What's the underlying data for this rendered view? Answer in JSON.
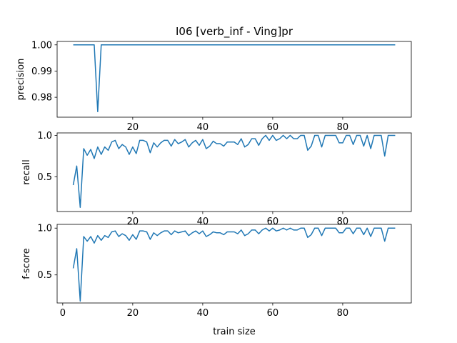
{
  "chart_data": [
    {
      "type": "line",
      "title": "I06 [verb_inf - Ving]pr",
      "xlabel": "",
      "ylabel": "precision",
      "xlim": [
        -1.6,
        99.6
      ],
      "ylim": [
        0.9724,
        1.0013
      ],
      "xticks": [
        20,
        40,
        60,
        80
      ],
      "yticks": [
        0.98,
        0.99,
        1.0
      ],
      "ytick_labels": [
        "0.98",
        "0.99",
        "1.00"
      ],
      "grid": false,
      "series": [
        {
          "color": "#1f77b4",
          "x": [
            3,
            9,
            10,
            11,
            95
          ],
          "y": [
            1.0,
            1.0,
            0.9745,
            1.0,
            1.0
          ]
        }
      ]
    },
    {
      "type": "line",
      "xlabel": "",
      "ylabel": "recall",
      "xlim": [
        -1.6,
        99.6
      ],
      "ylim": [
        0.08,
        1.03
      ],
      "xticks": [
        20,
        40,
        60,
        80
      ],
      "yticks": [
        0.5,
        1.0
      ],
      "ytick_labels": [
        "0.5",
        "1.0"
      ],
      "grid": false,
      "series": [
        {
          "color": "#1f77b4",
          "x": [
            3,
            4,
            5,
            6,
            7,
            8,
            9,
            10,
            11,
            12,
            13,
            14,
            15,
            16,
            17,
            18,
            19,
            20,
            21,
            22,
            23,
            24,
            25,
            26,
            27,
            28,
            29,
            30,
            31,
            32,
            33,
            34,
            35,
            36,
            37,
            38,
            39,
            40,
            41,
            42,
            43,
            44,
            45,
            46,
            47,
            48,
            49,
            50,
            51,
            52,
            53,
            54,
            55,
            56,
            57,
            58,
            59,
            60,
            61,
            62,
            63,
            64,
            65,
            66,
            67,
            68,
            69,
            70,
            71,
            72,
            73,
            74,
            75,
            76,
            77,
            78,
            79,
            80,
            81,
            82,
            83,
            84,
            85,
            86,
            87,
            88,
            89,
            90,
            91,
            92,
            93,
            94,
            95
          ],
          "y": [
            0.4,
            0.63,
            0.13,
            0.84,
            0.76,
            0.83,
            0.72,
            0.86,
            0.77,
            0.86,
            0.82,
            0.92,
            0.94,
            0.84,
            0.89,
            0.86,
            0.77,
            0.86,
            0.78,
            0.94,
            0.94,
            0.92,
            0.79,
            0.91,
            0.86,
            0.91,
            0.94,
            0.94,
            0.87,
            0.95,
            0.9,
            0.92,
            0.95,
            0.86,
            0.91,
            0.94,
            0.88,
            0.95,
            0.84,
            0.87,
            0.93,
            0.9,
            0.9,
            0.87,
            0.92,
            0.92,
            0.92,
            0.89,
            0.96,
            0.86,
            0.89,
            0.96,
            0.96,
            0.88,
            0.96,
            1.0,
            0.94,
            1.0,
            0.94,
            0.96,
            1.0,
            0.96,
            1.0,
            0.96,
            0.96,
            1.0,
            1.0,
            0.82,
            0.87,
            1.0,
            1.0,
            0.86,
            1.0,
            1.0,
            1.0,
            1.0,
            0.91,
            0.91,
            1.0,
            1.0,
            0.89,
            1.0,
            1.0,
            0.87,
            1.0,
            0.84,
            1.0,
            1.0,
            1.0,
            0.75,
            1.0,
            1.0,
            1.0
          ]
        }
      ]
    },
    {
      "type": "line",
      "xlabel": "train size",
      "ylabel": "f-score",
      "xlim": [
        -1.6,
        99.6
      ],
      "ylim": [
        0.2,
        1.04
      ],
      "xticks": [
        0,
        20,
        40,
        60,
        80
      ],
      "yticks": [
        0.5,
        1.0
      ],
      "ytick_labels": [
        "0.5",
        "1.0"
      ],
      "grid": false,
      "series": [
        {
          "color": "#1f77b4",
          "x": [
            3,
            4,
            5,
            6,
            7,
            8,
            9,
            10,
            11,
            12,
            13,
            14,
            15,
            16,
            17,
            18,
            19,
            20,
            21,
            22,
            23,
            24,
            25,
            26,
            27,
            28,
            29,
            30,
            31,
            32,
            33,
            34,
            35,
            36,
            37,
            38,
            39,
            40,
            41,
            42,
            43,
            44,
            45,
            46,
            47,
            48,
            49,
            50,
            51,
            52,
            53,
            54,
            55,
            56,
            57,
            58,
            59,
            60,
            61,
            62,
            63,
            64,
            65,
            66,
            67,
            68,
            69,
            70,
            71,
            72,
            73,
            74,
            75,
            76,
            77,
            78,
            79,
            80,
            81,
            82,
            83,
            84,
            85,
            86,
            87,
            88,
            89,
            90,
            91,
            92,
            93,
            94,
            95
          ],
          "y": [
            0.57,
            0.78,
            0.22,
            0.91,
            0.86,
            0.91,
            0.84,
            0.92,
            0.87,
            0.92,
            0.9,
            0.96,
            0.97,
            0.91,
            0.94,
            0.92,
            0.87,
            0.93,
            0.88,
            0.97,
            0.97,
            0.96,
            0.88,
            0.95,
            0.92,
            0.95,
            0.97,
            0.97,
            0.93,
            0.97,
            0.95,
            0.96,
            0.97,
            0.92,
            0.95,
            0.97,
            0.94,
            0.97,
            0.91,
            0.93,
            0.96,
            0.95,
            0.95,
            0.93,
            0.96,
            0.96,
            0.96,
            0.94,
            0.98,
            0.92,
            0.94,
            0.98,
            0.98,
            0.94,
            0.98,
            1.0,
            0.97,
            1.0,
            0.97,
            0.98,
            1.0,
            0.98,
            1.0,
            0.98,
            0.98,
            1.0,
            1.0,
            0.9,
            0.93,
            1.0,
            1.0,
            0.92,
            1.0,
            1.0,
            1.0,
            1.0,
            0.95,
            0.95,
            1.0,
            1.0,
            0.94,
            1.0,
            1.0,
            0.93,
            1.0,
            0.91,
            1.0,
            1.0,
            1.0,
            0.86,
            1.0,
            1.0,
            1.0
          ]
        }
      ]
    }
  ]
}
